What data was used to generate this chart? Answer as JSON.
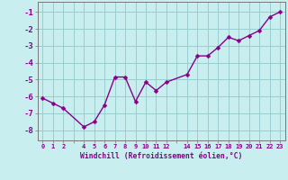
{
  "x": [
    0,
    1,
    2,
    4,
    5,
    6,
    7,
    8,
    9,
    10,
    11,
    12,
    14,
    15,
    16,
    17,
    18,
    19,
    20,
    21,
    22,
    23
  ],
  "y": [
    -6.1,
    -6.4,
    -6.7,
    -7.8,
    -7.5,
    -6.5,
    -4.85,
    -4.85,
    -6.3,
    -5.15,
    -5.65,
    -5.15,
    -4.7,
    -3.6,
    -3.6,
    -3.1,
    -2.5,
    -2.7,
    -2.4,
    -2.1,
    -1.3,
    -1.0
  ],
  "x_tick_positions": [
    0,
    1,
    2,
    3,
    4,
    5,
    6,
    7,
    8,
    9,
    10,
    11,
    12,
    13,
    14,
    15,
    16,
    17,
    18,
    19,
    20,
    21,
    22,
    23
  ],
  "x_tick_labels": [
    "0",
    "1",
    "2",
    "",
    "4",
    "5",
    "6",
    "7",
    "8",
    "9",
    "10",
    "11",
    "12",
    "",
    "14",
    "15",
    "16",
    "17",
    "18",
    "19",
    "20",
    "21",
    "22",
    "23"
  ],
  "ylim": [
    -8.6,
    -0.4
  ],
  "xlim": [
    -0.5,
    23.5
  ],
  "yticks": [
    -1,
    -2,
    -3,
    -4,
    -5,
    -6,
    -7,
    -8
  ],
  "line_color": "#880088",
  "bg_color": "#C8EEF0",
  "grid_color": "#99CCCC",
  "xlabel": "Windchill (Refroidissement éolien,°C)",
  "tick_color": "#880088",
  "marker_size": 2.5,
  "line_width": 1.0
}
